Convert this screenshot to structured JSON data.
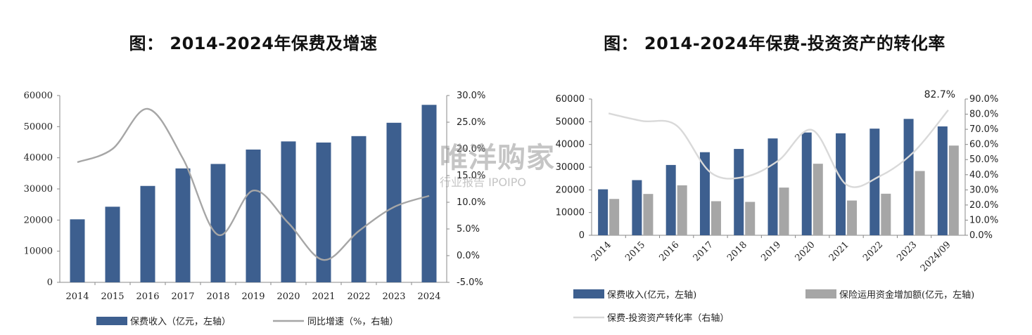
{
  "watermark": {
    "main": "唯洋购家",
    "sub": "行业报告 IPOIPO"
  },
  "chart_data": [
    {
      "type": "bar",
      "title": "图： 2014-2024年保费及增速",
      "categories": [
        "2014",
        "2015",
        "2016",
        "2017",
        "2018",
        "2019",
        "2020",
        "2021",
        "2022",
        "2023",
        "2024"
      ],
      "series": [
        {
          "name": "保费收入（亿元，左轴）",
          "type": "bar",
          "axis": "left",
          "color": "#3d5f8f",
          "values": [
            20235,
            24283,
            30959,
            36581,
            38017,
            42645,
            45257,
            44900,
            46957,
            51247,
            57000
          ]
        },
        {
          "name": "同比增速（%，右轴）",
          "type": "line",
          "axis": "right",
          "color": "#a6a6a6",
          "values": [
            17.5,
            20.0,
            27.5,
            18.2,
            3.9,
            12.2,
            6.1,
            -0.8,
            4.6,
            9.1,
            11.2
          ]
        }
      ],
      "y_left": {
        "min": 0,
        "max": 60000,
        "ticks": [
          "0",
          "10000",
          "20000",
          "30000",
          "40000",
          "50000",
          "60000"
        ]
      },
      "y_right": {
        "min": -5,
        "max": 30,
        "ticks": [
          "-5.0%",
          "0.0%",
          "5.0%",
          "10.0%",
          "15.0%",
          "20.0%",
          "25.0%",
          "30.0%"
        ]
      },
      "grid": false,
      "legend_position": "bottom"
    },
    {
      "type": "bar",
      "title": "图： 2014-2024年保费-投资资产的转化率",
      "categories": [
        "2014",
        "2015",
        "2016",
        "2017",
        "2018",
        "2019",
        "2020",
        "2021",
        "2022",
        "2023",
        "2024/09"
      ],
      "series": [
        {
          "name": "保费收入(亿元，左轴)",
          "type": "bar",
          "axis": "left",
          "color": "#3d5f8f",
          "values": [
            20235,
            24283,
            30959,
            36581,
            38017,
            42645,
            45257,
            44900,
            46957,
            51247,
            47936
          ]
        },
        {
          "name": "保险运用资金增加额(亿元，左轴)",
          "type": "bar",
          "axis": "left",
          "color": "#a6a6a6",
          "values": [
            16000,
            18200,
            22000,
            15000,
            14700,
            21000,
            31500,
            15300,
            18300,
            28300,
            39500
          ]
        },
        {
          "name": "保费-投资资产转化率（右轴）",
          "type": "line",
          "axis": "right",
          "color": "#d9d9d9",
          "values": [
            80.5,
            75.5,
            72.5,
            41.5,
            38.5,
            49.3,
            69.5,
            33.5,
            39.2,
            55.3,
            82.7
          ]
        }
      ],
      "y_left": {
        "min": 0,
        "max": 60000,
        "ticks": [
          "0",
          "10000",
          "20000",
          "30000",
          "40000",
          "50000",
          "60000"
        ]
      },
      "y_right": {
        "min": 0,
        "max": 90,
        "ticks": [
          "0.0%",
          "10.0%",
          "20.0%",
          "30.0%",
          "40.0%",
          "50.0%",
          "60.0%",
          "70.0%",
          "80.0%",
          "90.0%"
        ]
      },
      "annotation": "82.7%",
      "grid": false,
      "legend_position": "bottom"
    }
  ]
}
